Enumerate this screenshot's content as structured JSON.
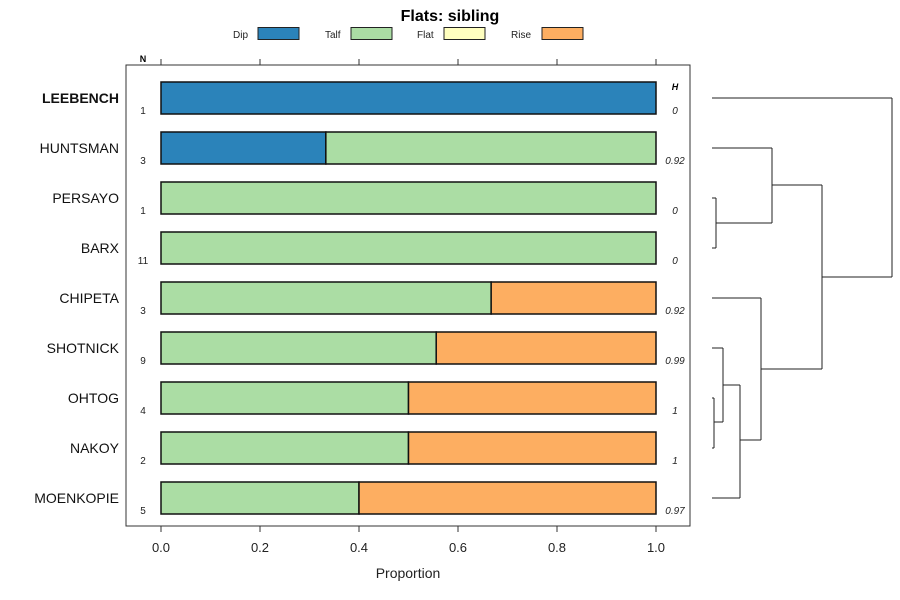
{
  "chart_data": {
    "type": "bar",
    "orientation": "horizontal-stacked",
    "title": "Flats: sibling",
    "xlabel": "Proportion",
    "xlim": [
      0,
      1
    ],
    "xticks": [
      "0.0",
      "0.2",
      "0.4",
      "0.6",
      "0.8",
      "1.0"
    ],
    "xtick_values": [
      0,
      0.2,
      0.4,
      0.6,
      0.8,
      1.0
    ],
    "n_header": "N",
    "h_header": "H",
    "legend": {
      "placement": "top",
      "entries": [
        {
          "name": "Dip",
          "color": "#2b83ba"
        },
        {
          "name": "Talf",
          "color": "#abdda4"
        },
        {
          "name": "Flat",
          "color": "#ffffbf"
        },
        {
          "name": "Rise",
          "color": "#fdae61"
        }
      ]
    },
    "categories": [
      "LEEBENCH",
      "HUNTSMAN",
      "PERSAYO",
      "BARX",
      "CHIPETA",
      "SHOTNICK",
      "OHTOG",
      "NAKOY",
      "MOENKOPIE"
    ],
    "highlight": "LEEBENCH",
    "n": [
      "1",
      "3",
      "1",
      "11",
      "3",
      "9",
      "4",
      "2",
      "5"
    ],
    "h": [
      "0",
      "0.92",
      "0",
      "0",
      "0.92",
      "0.99",
      "1",
      "1",
      "0.97"
    ],
    "series": [
      {
        "name": "Dip",
        "values": [
          1,
          0.333,
          0,
          0,
          0,
          0,
          0,
          0,
          0
        ]
      },
      {
        "name": "Talf",
        "values": [
          0,
          0.667,
          1,
          1,
          0.667,
          0.556,
          0.5,
          0.5,
          0.4
        ]
      },
      {
        "name": "Flat",
        "values": [
          0,
          0,
          0,
          0,
          0,
          0,
          0,
          0,
          0
        ]
      },
      {
        "name": "Rise",
        "values": [
          0,
          0,
          0,
          0,
          0.333,
          0.444,
          0.5,
          0.5,
          0.6
        ]
      }
    ]
  }
}
